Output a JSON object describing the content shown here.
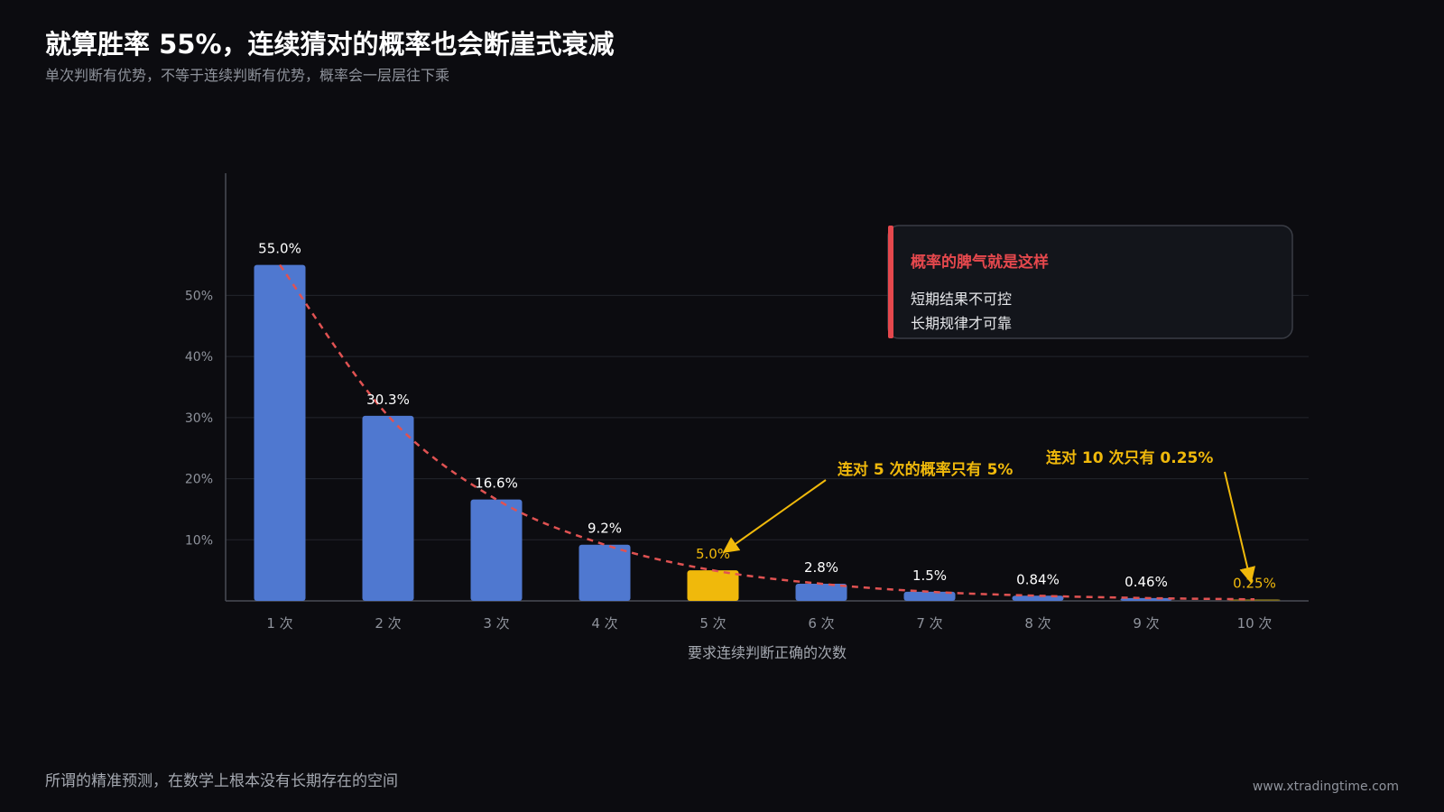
{
  "header": {
    "title": "就算胜率 55%，连续猜对的概率也会断崖式衰减",
    "subtitle": "单次判断有优势，不等于连续判断有优势，概率会一层层往下乘"
  },
  "chart_data": {
    "type": "bar",
    "categories": [
      "1 次",
      "2 次",
      "3 次",
      "4 次",
      "5 次",
      "6 次",
      "7 次",
      "8 次",
      "9 次",
      "10 次"
    ],
    "values": [
      55.0,
      30.3,
      16.6,
      9.2,
      5.0,
      2.8,
      1.5,
      0.84,
      0.46,
      0.25
    ],
    "data_labels": [
      "55.0%",
      "30.3%",
      "16.6%",
      "9.2%",
      "5.0%",
      "2.8%",
      "1.5%",
      "0.84%",
      "0.46%",
      "0.25%"
    ],
    "highlight_indices": [
      4,
      9
    ],
    "y_ticks": [
      10,
      20,
      30,
      40,
      50
    ],
    "y_tick_labels": [
      "10%",
      "20%",
      "30%",
      "40%",
      "50%"
    ],
    "ylim": [
      0,
      70
    ],
    "xlabel": "要求连续判断正确的次数",
    "ylabel": "",
    "grid": true,
    "trend_line": "dashed",
    "colors": {
      "bar": "#4f78d0",
      "highlight_bar": "#f0b90b",
      "trend": "#e05252",
      "grid": "#23252c",
      "axis": "#4a4d55",
      "tick_text": "#8f939c",
      "label_text": "#ffffff",
      "highlight_text": "#f0b90b"
    },
    "annotations": [
      {
        "text": "连对 5 次的概率只有 5%",
        "target_index": 4
      },
      {
        "text": "连对 10 次只有 0.25%",
        "target_index": 9
      }
    ]
  },
  "callout": {
    "title": "概率的脾气就是这样",
    "lines": [
      "短期结果不可控",
      "长期规律才可靠"
    ],
    "accent_color": "#e5484d"
  },
  "footer": {
    "note": "所谓的精准预测，在数学上根本没有长期存在的空间",
    "url": "www.xtradingtime.com"
  }
}
